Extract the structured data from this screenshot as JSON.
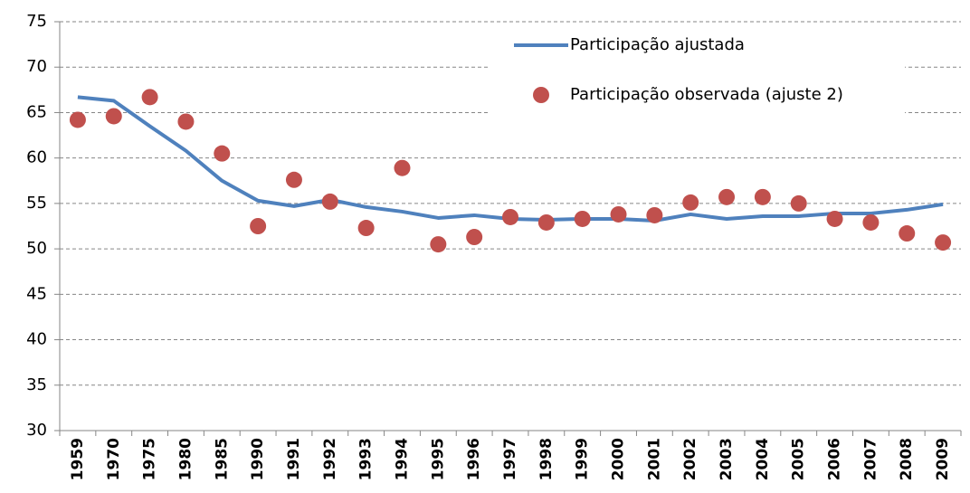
{
  "chart_data": {
    "type": "line",
    "categories": [
      "1959",
      "1970",
      "1975",
      "1980",
      "1985",
      "1990",
      "1991",
      "1992",
      "1993",
      "1994",
      "1995",
      "1996",
      "1997",
      "1998",
      "1999",
      "2000",
      "2001",
      "2002",
      "2003",
      "2004",
      "2005",
      "2006",
      "2007",
      "2008",
      "2009"
    ],
    "series": [
      {
        "name": "Participação ajustada",
        "color": "#4f81bd",
        "mode": "line",
        "values": [
          66.7,
          66.3,
          63.5,
          60.8,
          57.5,
          55.3,
          54.7,
          55.4,
          54.6,
          54.1,
          53.4,
          53.7,
          53.3,
          53.2,
          53.3,
          53.3,
          53.1,
          53.8,
          53.3,
          53.6,
          53.6,
          53.9,
          53.9,
          54.3,
          54.9
        ]
      },
      {
        "name": "Participação observada (ajuste 2)",
        "color": "#c0504d",
        "mode": "markers",
        "values": [
          64.2,
          64.6,
          66.7,
          64.0,
          60.5,
          52.5,
          57.6,
          55.2,
          52.3,
          58.9,
          50.5,
          51.3,
          53.5,
          52.9,
          53.3,
          53.8,
          53.7,
          55.1,
          55.7,
          55.7,
          55.0,
          53.3,
          52.9,
          51.7,
          50.7
        ]
      }
    ],
    "ylim": [
      30,
      75
    ],
    "yticks": [
      30,
      35,
      40,
      45,
      50,
      55,
      60,
      65,
      70,
      75
    ],
    "grid": true,
    "legend": "top-right"
  }
}
